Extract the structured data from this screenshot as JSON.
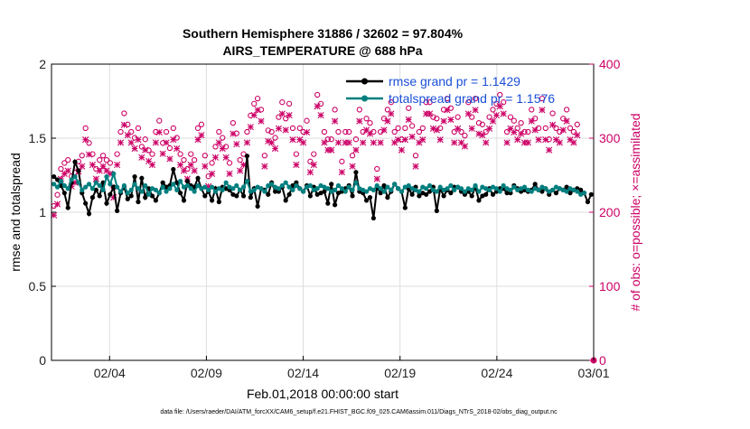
{
  "chart_data": {
    "type": "line",
    "title_line1": "Southern Hemisphere 31886 / 32602 = 97.804%",
    "title_line2": "AIRS_TEMPERATURE @ 688 hPa",
    "xlabel": "Feb.01,2018 00:00:00 start",
    "ylabel": "rmse and totalspread",
    "ylabel_right": "# of obs: o=possible; ×=assimilated",
    "footnote": "data file: /Users/raeder/DAI/ATM_forcXX/CAM6_setup/f.e21.FHIST_BGC.f09_025.CAM6assim.011/Diags_NTrS_2018-02/obs_diag_output.nc",
    "x_range_days": [
      1.0,
      29.0
    ],
    "ylim": [
      0,
      2
    ],
    "ylim_right": [
      0,
      400
    ],
    "x_tick_labels": [
      "02/04",
      "02/09",
      "02/14",
      "02/19",
      "02/24",
      "03/01"
    ],
    "x_tick_days": [
      4,
      9,
      14,
      19,
      24,
      29
    ],
    "y_ticks": [
      0,
      0.5,
      1,
      1.5,
      2
    ],
    "y_tick_labels": [
      "0",
      "0.5",
      "1",
      "1.5",
      "2"
    ],
    "y_ticks_right": [
      0,
      100,
      200,
      300,
      400
    ],
    "y_tick_labels_right": [
      "0",
      "100",
      "200",
      "300",
      "400"
    ],
    "grid": true,
    "legend_position": "top-right",
    "colors": {
      "rmse": "#000000",
      "spread": "#007f7f",
      "obs": "#cc0066",
      "legend_text": "#1a4fd6",
      "grid": "#dddddd"
    },
    "series": [
      {
        "name": "rmse grand pr = 1.1429",
        "values": [
          1.24,
          1.22,
          1.18,
          1.13,
          1.03,
          1.2,
          1.34,
          1.28,
          1.13,
          1.06,
          0.99,
          1.1,
          1.15,
          1.11,
          1.2,
          1.06,
          1.12,
          1.17,
          1.01,
          1.13,
          1.17,
          1.09,
          1.11,
          1.24,
          1.07,
          1.23,
          1.1,
          1.16,
          1.11,
          1.08,
          1.13,
          1.2,
          1.17,
          1.18,
          1.29,
          1.2,
          1.13,
          1.08,
          1.21,
          1.18,
          1.17,
          1.23,
          1.16,
          1.11,
          1.14,
          1.08,
          1.16,
          1.07,
          1.17,
          1.16,
          1.15,
          1.12,
          1.11,
          1.15,
          1.11,
          1.38,
          1.1,
          1.16,
          1.04,
          1.16,
          1.15,
          1.12,
          1.2,
          1.14,
          1.14,
          1.17,
          1.08,
          1.12,
          1.18,
          1.2,
          1.16,
          1.14,
          1.18,
          1.11,
          1.17,
          1.12,
          1.13,
          1.14,
          1.06,
          1.19,
          1.05,
          1.13,
          1.14,
          1.16,
          1.18,
          1.11,
          1.27,
          1.14,
          1.13,
          1.08,
          1.1,
          0.96,
          1.17,
          1.13,
          1.18,
          1.1,
          1.14,
          1.19,
          1.16,
          1.14,
          1.03,
          1.16,
          1.12,
          1.17,
          1.11,
          1.13,
          1.12,
          1.14,
          1.17,
          1.01,
          1.16,
          1.11,
          1.15,
          1.13,
          1.17,
          1.17,
          1.14,
          1.12,
          1.14,
          1.11,
          1.17,
          1.08,
          1.11,
          1.12,
          1.16,
          1.12,
          1.14,
          1.16,
          1.16,
          1.13,
          1.13,
          1.18,
          1.16,
          1.14,
          1.15,
          1.14,
          1.15,
          1.19,
          1.15,
          1.14,
          1.16,
          1.12,
          1.15,
          1.13,
          1.16,
          1.15,
          1.17,
          1.13,
          1.15,
          1.16,
          1.15,
          1.13,
          1.07,
          1.12
        ]
      },
      {
        "name": "totalspread grand pr = 1.1576",
        "values": [
          1.19,
          1.17,
          1.21,
          1.18,
          1.16,
          1.22,
          1.24,
          1.2,
          1.15,
          1.17,
          1.19,
          1.16,
          1.2,
          1.18,
          1.15,
          1.24,
          1.19,
          1.26,
          1.17,
          1.14,
          1.18,
          1.13,
          1.15,
          1.19,
          1.16,
          1.14,
          1.18,
          1.12,
          1.16,
          1.15,
          1.13,
          1.17,
          1.14,
          1.16,
          1.19,
          1.15,
          1.21,
          1.17,
          1.18,
          1.16,
          1.14,
          1.18,
          1.16,
          1.17,
          1.15,
          1.17,
          1.14,
          1.16,
          1.15,
          1.2,
          1.17,
          1.16,
          1.18,
          1.15,
          1.17,
          1.21,
          1.14,
          1.15,
          1.17,
          1.16,
          1.14,
          1.18,
          1.19,
          1.17,
          1.16,
          1.18,
          1.2,
          1.17,
          1.15,
          1.18,
          1.16,
          1.14,
          1.17,
          1.18,
          1.15,
          1.16,
          1.18,
          1.17,
          1.16,
          1.14,
          1.15,
          1.18,
          1.16,
          1.14,
          1.17,
          1.15,
          1.2,
          1.16,
          1.15,
          1.14,
          1.16,
          1.15,
          1.18,
          1.16,
          1.14,
          1.17,
          1.15,
          1.19,
          1.16,
          1.14,
          1.17,
          1.18,
          1.16,
          1.15,
          1.14,
          1.17,
          1.16,
          1.18,
          1.15,
          1.14,
          1.17,
          1.15,
          1.16,
          1.18,
          1.15,
          1.17,
          1.16,
          1.14,
          1.16,
          1.15,
          1.18,
          1.14,
          1.17,
          1.16,
          1.15,
          1.17,
          1.16,
          1.14,
          1.18,
          1.16,
          1.15,
          1.17,
          1.15,
          1.16,
          1.17,
          1.15,
          1.14,
          1.16,
          1.15,
          1.17,
          1.16,
          1.14,
          1.15,
          1.17,
          1.16,
          1.15,
          1.14,
          1.16,
          1.15,
          1.14,
          1.12,
          1.13
        ]
      },
      {
        "name": "# of obs possible",
        "axis": "right",
        "values": [
          200,
          215,
          250,
          258,
          262,
          240,
          245,
          260,
          268,
          305,
          285,
          270,
          250,
          262,
          268,
          262,
          258,
          225,
          270,
          300,
          325,
          310,
          300,
          292,
          305,
          280,
          290,
          275,
          270,
          300,
          315,
          285,
          300,
          278,
          305,
          292,
          270,
          262,
          250,
          270,
          262,
          305,
          310,
          268,
          240,
          258,
          280,
          300,
          292,
          280,
          258,
          312,
          298,
          262,
          270,
          300,
          322,
          338,
          345,
          330,
          268,
          302,
          300,
          292,
          320,
          340,
          318,
          338,
          305,
          270,
          305,
          300,
          315,
          260,
          270,
          350,
          338,
          300,
          290,
          290,
          330,
          300,
          260,
          300,
          300,
          268,
          290,
          330,
          300,
          318,
          312,
          300,
          250,
          300,
          318,
          330,
          340,
          300,
          305,
          290,
          305,
          332,
          308,
          268,
          300,
          305,
          340,
          340,
          320,
          318,
          305,
          330,
          345,
          332,
          300,
          320,
          300,
          295,
          340,
          320,
          345,
          312,
          310,
          300,
          320,
          330,
          338,
          350,
          340,
          300,
          320,
          315,
          305,
          312,
          300,
          300,
          330,
          318,
          305,
          345,
          305,
          290,
          325,
          305,
          300,
          318,
          330,
          305,
          300,
          310
        ]
      },
      {
        "name": "# of obs assimilated",
        "axis": "right",
        "values": [
          196,
          211,
          245,
          252,
          256,
          235,
          240,
          255,
          262,
          298,
          278,
          264,
          245,
          256,
          262,
          256,
          252,
          220,
          264,
          294,
          318,
          304,
          294,
          286,
          298,
          274,
          284,
          269,
          264,
          294,
          308,
          279,
          294,
          272,
          298,
          286,
          264,
          256,
          245,
          264,
          256,
          298,
          304,
          262,
          235,
          252,
          274,
          294,
          286,
          274,
          252,
          306,
          292,
          256,
          264,
          294,
          315,
          331,
          338,
          323,
          262,
          296,
          294,
          286,
          313,
          333,
          311,
          331,
          298,
          264,
          298,
          294,
          308,
          254,
          264,
          343,
          331,
          294,
          284,
          284,
          323,
          294,
          254,
          294,
          294,
          262,
          284,
          323,
          294,
          311,
          306,
          294,
          245,
          294,
          311,
          323,
          333,
          294,
          298,
          284,
          298,
          325,
          302,
          262,
          294,
          298,
          333,
          333,
          313,
          311,
          298,
          323,
          338,
          325,
          294,
          313,
          294,
          289,
          333,
          313,
          338,
          306,
          304,
          294,
          313,
          323,
          331,
          343,
          333,
          294,
          313,
          308,
          298,
          306,
          294,
          294,
          323,
          311,
          298,
          338,
          298,
          284,
          318,
          298,
          294,
          311,
          323,
          298,
          294,
          304
        ]
      }
    ],
    "final_obs_marker_value": 0
  }
}
